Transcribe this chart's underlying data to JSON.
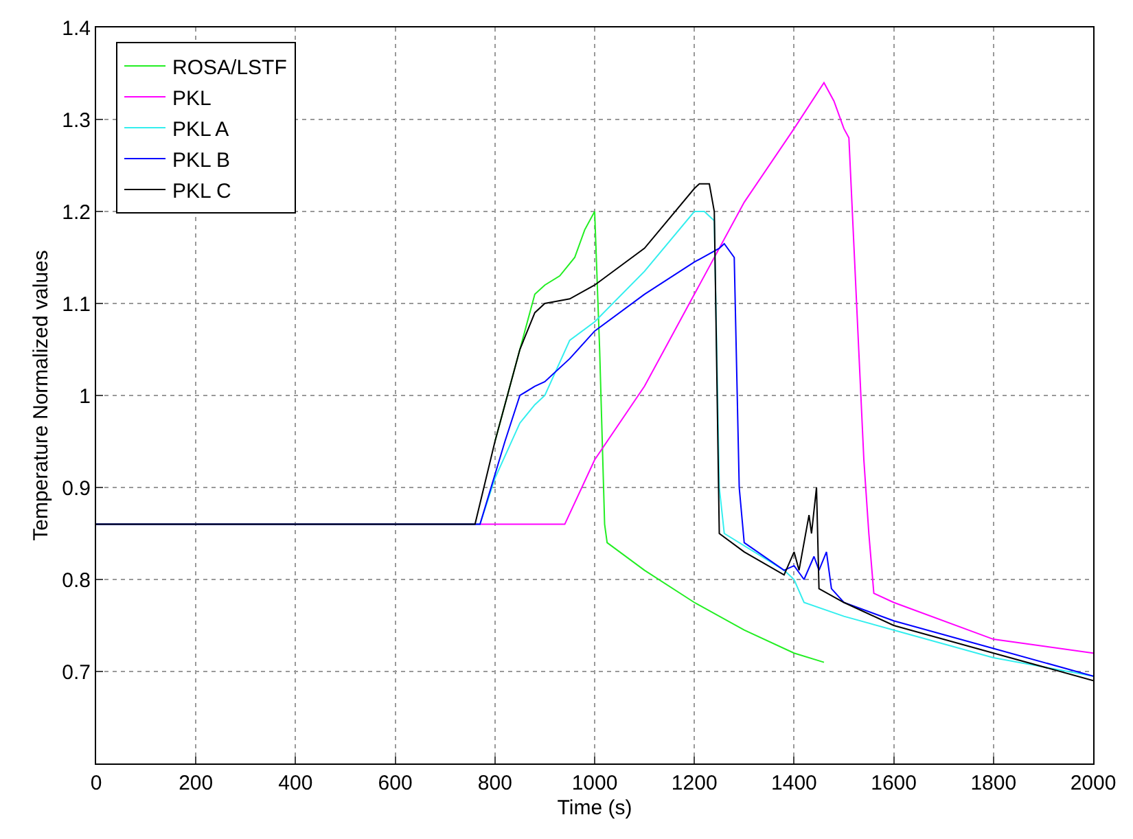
{
  "chart_data": {
    "type": "line",
    "xlabel": "Time (s)",
    "ylabel": "Temperature Normalized values",
    "xlim": [
      0,
      2000
    ],
    "xticks": [
      0,
      200,
      400,
      600,
      800,
      1000,
      1200,
      1400,
      1600,
      1800,
      2000
    ],
    "ylim": [
      0.6,
      1.4
    ],
    "yticks": [
      {
        "value": 0.6,
        "label": null
      },
      0.7,
      0.8,
      0.9,
      1,
      1.1,
      1.2,
      1.3,
      1.4
    ],
    "grid": true,
    "legend": "top left",
    "marker": "none",
    "line_style": "solid",
    "series": [
      {
        "name": "ROSA/LSTF",
        "color": "#22ee22",
        "x": [
          800,
          850,
          880,
          900,
          930,
          960,
          980,
          1000,
          1010,
          1020,
          1025,
          1100,
          1200,
          1300,
          1400,
          1460
        ],
        "values": [
          0.95,
          1.05,
          1.11,
          1.12,
          1.13,
          1.15,
          1.18,
          1.2,
          1.05,
          0.86,
          0.84,
          0.81,
          0.775,
          0.745,
          0.72,
          0.71
        ]
      },
      {
        "name": "PKL",
        "color": "#ff00ff",
        "x": [
          0,
          940,
          1000,
          1100,
          1200,
          1300,
          1400,
          1460,
          1480,
          1500,
          1510,
          1540,
          1550,
          1560,
          1600,
          1800,
          2000
        ],
        "values": [
          0.86,
          0.86,
          0.93,
          1.01,
          1.11,
          1.21,
          1.29,
          1.34,
          1.32,
          1.29,
          1.28,
          0.93,
          0.85,
          0.785,
          0.775,
          0.735,
          0.72
        ]
      },
      {
        "name": "PKL A",
        "color": "#33eeee",
        "x": [
          0,
          770,
          800,
          850,
          880,
          900,
          950,
          1000,
          1100,
          1200,
          1220,
          1240,
          1250,
          1260,
          1380,
          1400,
          1420,
          1500,
          1600,
          1800,
          2000
        ],
        "values": [
          0.86,
          0.86,
          0.91,
          0.97,
          0.99,
          1.0,
          1.06,
          1.08,
          1.135,
          1.2,
          1.2,
          1.19,
          0.9,
          0.85,
          0.81,
          0.8,
          0.775,
          0.76,
          0.745,
          0.715,
          0.695
        ]
      },
      {
        "name": "PKL B",
        "color": "#0000ff",
        "x": [
          0,
          770,
          820,
          850,
          880,
          900,
          950,
          1000,
          1100,
          1200,
          1250,
          1260,
          1280,
          1290,
          1300,
          1380,
          1400,
          1420,
          1440,
          1450,
          1465,
          1475,
          1500,
          1600,
          1800,
          2000
        ],
        "values": [
          0.86,
          0.86,
          0.95,
          1.0,
          1.01,
          1.015,
          1.04,
          1.07,
          1.11,
          1.145,
          1.16,
          1.165,
          1.15,
          0.9,
          0.84,
          0.81,
          0.815,
          0.8,
          0.825,
          0.81,
          0.83,
          0.79,
          0.775,
          0.755,
          0.725,
          0.695
        ]
      },
      {
        "name": "PKL C",
        "color": "#000000",
        "x": [
          0,
          760,
          800,
          850,
          880,
          900,
          950,
          1000,
          1100,
          1200,
          1210,
          1230,
          1240,
          1250,
          1300,
          1380,
          1400,
          1410,
          1430,
          1435,
          1445,
          1450,
          1500,
          1600,
          1800,
          2000
        ],
        "values": [
          0.86,
          0.86,
          0.95,
          1.05,
          1.09,
          1.1,
          1.105,
          1.12,
          1.16,
          1.225,
          1.23,
          1.23,
          1.2,
          0.85,
          0.83,
          0.805,
          0.83,
          0.81,
          0.87,
          0.85,
          0.9,
          0.79,
          0.775,
          0.75,
          0.72,
          0.69
        ]
      }
    ]
  }
}
